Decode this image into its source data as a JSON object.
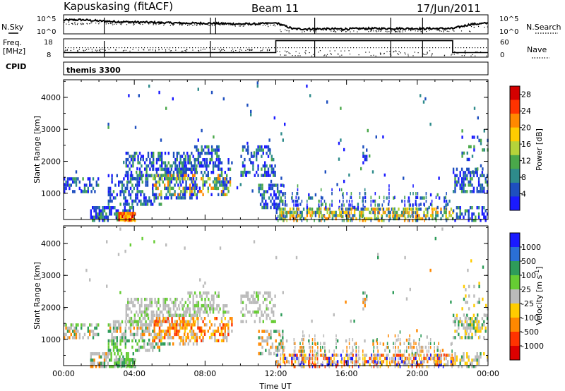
{
  "header": {
    "radar": "Kapuskasing (fitACF)",
    "beam": "Beam 11",
    "date": "17/Jun/2011"
  },
  "params": {
    "nsky_label": "N.Sky",
    "nsearch_label": "N.Search",
    "freq_label_1": "Freq.",
    "freq_label_2": "[MHz]",
    "nave_label": "Nave",
    "cpid_label": "CPID",
    "cpid_value": "themis 3300",
    "noise_ticks": [
      "10^5",
      "10^0"
    ],
    "noise_ticks_right": [
      "10^5",
      "10^0"
    ],
    "freq_ticks": [
      "18",
      "8"
    ],
    "nave_ticks": [
      "60",
      "0"
    ]
  },
  "colors": {
    "power_scale": [
      "#1a1aff",
      "#1e4fbf",
      "#2e8b8b",
      "#4aa84a",
      "#b5d33a",
      "#ffcc00",
      "#ff8800",
      "#ff3300",
      "#d40000"
    ],
    "velocity_scale": [
      "#1a1aff",
      "#2a6fd6",
      "#2e9c5a",
      "#66cc33",
      "#bbbbbb",
      "#ffcc00",
      "#ff8800",
      "#ff3300",
      "#dd0000"
    ]
  },
  "chart_data": [
    {
      "type": "line",
      "name": "noise-panel",
      "x": [
        "00:00",
        "01:00",
        "02:00",
        "03:00",
        "04:00",
        "05:00",
        "06:00",
        "07:00",
        "08:00",
        "09:00",
        "10:00",
        "11:00",
        "12:00",
        "13:00",
        "14:00",
        "15:00",
        "16:00",
        "17:00",
        "18:00",
        "19:00",
        "20:00",
        "21:00",
        "22:00",
        "23:00",
        "24:00"
      ],
      "series": [
        {
          "values": [
            3.6,
            3.7,
            3.4,
            3.2,
            3.1,
            3.0,
            2.9,
            2.8,
            2.8,
            2.7,
            2.6,
            2.6,
            2.9,
            1.3,
            1.3,
            1.3,
            1.3,
            1.4,
            1.4,
            1.4,
            1.4,
            1.4,
            1.4,
            2.5,
            2.8
          ]
        }
      ],
      "ylim": [
        0,
        5
      ]
    },
    {
      "type": "line",
      "name": "frequency-panel",
      "x": [
        "00:00",
        "12:00",
        "12:00",
        "24:00"
      ],
      "series": [
        {
          "values": [
            10.5,
            10.5,
            17,
            10.5
          ]
        }
      ],
      "ylim": [
        8,
        18
      ]
    },
    {
      "type": "heatmap",
      "name": "power-panel",
      "xlabel": "",
      "ylabel": "Slant Range [km]",
      "x_ticks": [
        "00:00",
        "04:00",
        "08:00",
        "12:00",
        "16:00",
        "20:00",
        "00:00"
      ],
      "y_ticks": [
        "1000",
        "2000",
        "3000",
        "4000"
      ],
      "xlim_hours": [
        0,
        24
      ],
      "ylim": [
        180,
        4550
      ],
      "colorbar": {
        "label": "Power [dB]",
        "ticks": [
          "4",
          "8",
          "12",
          "16",
          "20",
          "24",
          "28"
        ],
        "range": [
          0,
          30
        ]
      }
    },
    {
      "type": "heatmap",
      "name": "velocity-panel",
      "xlabel": "Time UT",
      "ylabel": "Slant Range [km]",
      "x_ticks": [
        "00:00",
        "04:00",
        "08:00",
        "12:00",
        "16:00",
        "20:00",
        "00:00"
      ],
      "y_ticks": [
        "1000",
        "2000",
        "3000",
        "4000"
      ],
      "xlim_hours": [
        0,
        24
      ],
      "ylim": [
        180,
        4550
      ],
      "colorbar": {
        "label": "Velocity [m s^-1]",
        "ticks": [
          "1000",
          "500",
          "100",
          "25",
          "-25",
          "-100",
          "-500",
          "-1000"
        ]
      }
    }
  ]
}
